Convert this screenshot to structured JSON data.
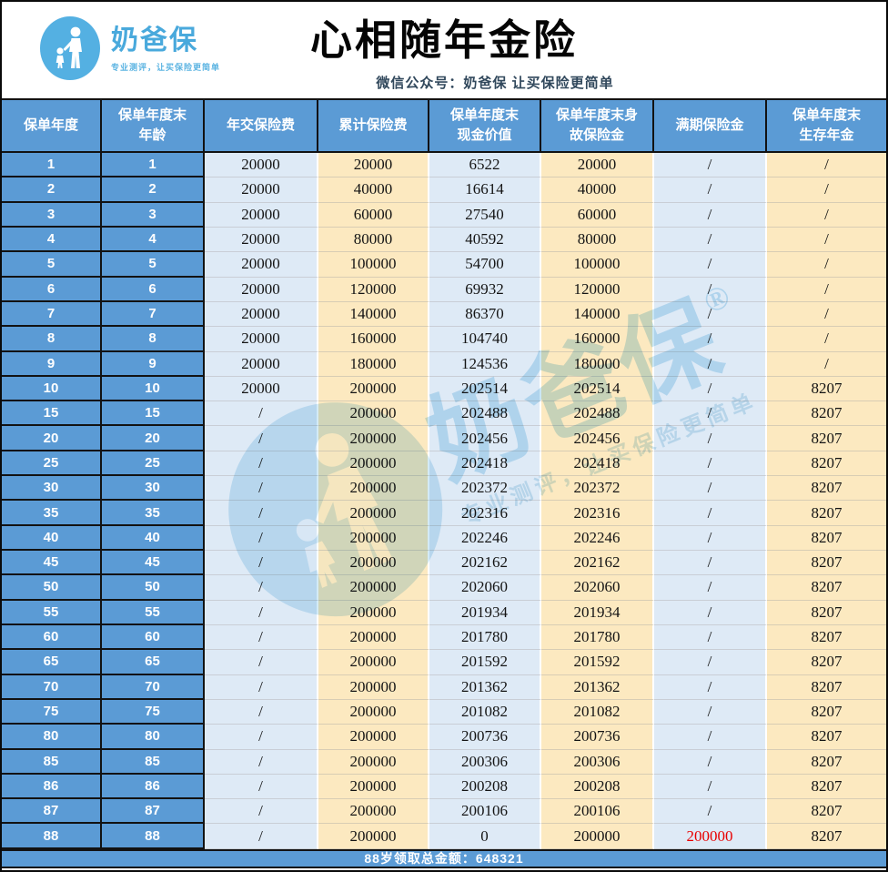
{
  "header": {
    "logo": {
      "brand": "奶爸保",
      "tagline": "专业测评，让买保险更简单"
    },
    "title": "心相随年金险",
    "subtitle": "微信公众号：奶爸保  让买保险更简单"
  },
  "table": {
    "columns": [
      "保单年度",
      "保单年度末\n年龄",
      "年交保险费",
      "累计保险费",
      "保单年度末\n现金价值",
      "保单年度末身\n故保险金",
      "满期保险金",
      "保单年度末\n生存年金"
    ],
    "rows": [
      {
        "cells": [
          "1",
          "1",
          "20000",
          "20000",
          "6522",
          "20000",
          "/",
          "/"
        ]
      },
      {
        "cells": [
          "2",
          "2",
          "20000",
          "40000",
          "16614",
          "40000",
          "/",
          "/"
        ]
      },
      {
        "cells": [
          "3",
          "3",
          "20000",
          "60000",
          "27540",
          "60000",
          "/",
          "/"
        ]
      },
      {
        "cells": [
          "4",
          "4",
          "20000",
          "80000",
          "40592",
          "80000",
          "/",
          "/"
        ]
      },
      {
        "cells": [
          "5",
          "5",
          "20000",
          "100000",
          "54700",
          "100000",
          "/",
          "/"
        ]
      },
      {
        "cells": [
          "6",
          "6",
          "20000",
          "120000",
          "69932",
          "120000",
          "/",
          "/"
        ]
      },
      {
        "cells": [
          "7",
          "7",
          "20000",
          "140000",
          "86370",
          "140000",
          "/",
          "/"
        ]
      },
      {
        "cells": [
          "8",
          "8",
          "20000",
          "160000",
          "104740",
          "160000",
          "/",
          "/"
        ]
      },
      {
        "cells": [
          "9",
          "9",
          "20000",
          "180000",
          "124536",
          "180000",
          "/",
          "/"
        ]
      },
      {
        "cells": [
          "10",
          "10",
          "20000",
          "200000",
          "202514",
          "202514",
          "/",
          "8207"
        ]
      },
      {
        "cells": [
          "15",
          "15",
          "/",
          "200000",
          "202488",
          "202488",
          "/",
          "8207"
        ]
      },
      {
        "cells": [
          "20",
          "20",
          "/",
          "200000",
          "202456",
          "202456",
          "/",
          "8207"
        ]
      },
      {
        "cells": [
          "25",
          "25",
          "/",
          "200000",
          "202418",
          "202418",
          "/",
          "8207"
        ]
      },
      {
        "cells": [
          "30",
          "30",
          "/",
          "200000",
          "202372",
          "202372",
          "/",
          "8207"
        ]
      },
      {
        "cells": [
          "35",
          "35",
          "/",
          "200000",
          "202316",
          "202316",
          "/",
          "8207"
        ]
      },
      {
        "cells": [
          "40",
          "40",
          "/",
          "200000",
          "202246",
          "202246",
          "/",
          "8207"
        ]
      },
      {
        "cells": [
          "45",
          "45",
          "/",
          "200000",
          "202162",
          "202162",
          "/",
          "8207"
        ]
      },
      {
        "cells": [
          "50",
          "50",
          "/",
          "200000",
          "202060",
          "202060",
          "/",
          "8207"
        ]
      },
      {
        "cells": [
          "55",
          "55",
          "/",
          "200000",
          "201934",
          "201934",
          "/",
          "8207"
        ]
      },
      {
        "cells": [
          "60",
          "60",
          "/",
          "200000",
          "201780",
          "201780",
          "/",
          "8207"
        ]
      },
      {
        "cells": [
          "65",
          "65",
          "/",
          "200000",
          "201592",
          "201592",
          "/",
          "8207"
        ]
      },
      {
        "cells": [
          "70",
          "70",
          "/",
          "200000",
          "201362",
          "201362",
          "/",
          "8207"
        ]
      },
      {
        "cells": [
          "75",
          "75",
          "/",
          "200000",
          "201082",
          "201082",
          "/",
          "8207"
        ]
      },
      {
        "cells": [
          "80",
          "80",
          "/",
          "200000",
          "200736",
          "200736",
          "/",
          "8207"
        ]
      },
      {
        "cells": [
          "85",
          "85",
          "/",
          "200000",
          "200306",
          "200306",
          "/",
          "8207"
        ]
      },
      {
        "cells": [
          "86",
          "86",
          "/",
          "200000",
          "200208",
          "200208",
          "/",
          "8207"
        ]
      },
      {
        "cells": [
          "87",
          "87",
          "/",
          "200000",
          "200106",
          "200106",
          "/",
          "8207"
        ]
      },
      {
        "cells": [
          "88",
          "88",
          "/",
          "200000",
          "0",
          "200000",
          "200000",
          "8207"
        ],
        "red_col": 6
      }
    ]
  },
  "footer": {
    "summary": "88岁领取总金额：648321"
  },
  "watermark": {
    "brand": "奶爸保",
    "reg": "®",
    "tagline": "专业测评，让买保险更简单"
  },
  "colors": {
    "accent_blue": "#5B9BD5",
    "cell_light_blue": "#DEEAF6",
    "cell_cream": "#FCE9C0",
    "red_value": "#E80000",
    "brand_blue": "#49A9DC",
    "subtitle_navy": "#31485C"
  }
}
